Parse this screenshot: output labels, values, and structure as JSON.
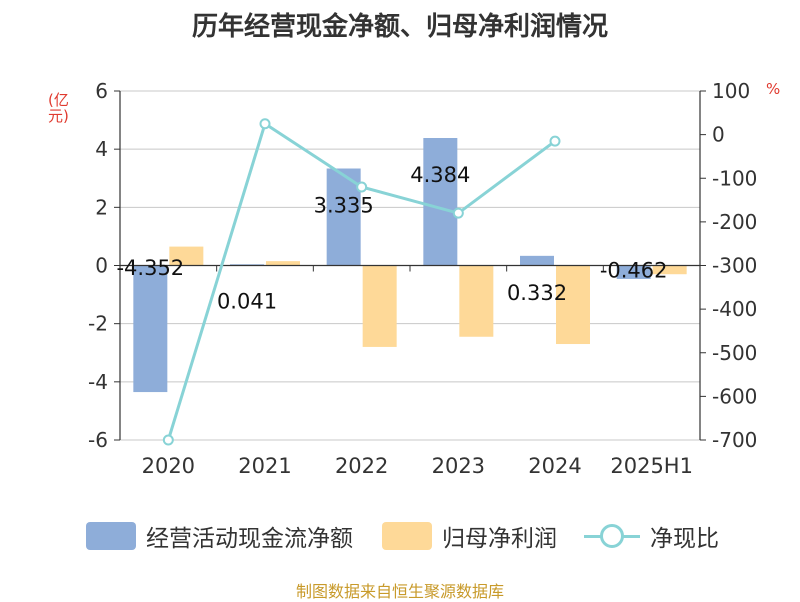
{
  "title": "历年经营现金净额、归母净利润情况",
  "source": "制图数据来自恒生聚源数据库",
  "colors": {
    "cash": "#8eadd9",
    "profit": "#fed998",
    "ratio": "#88d3d6",
    "axis_unit": "#e03a2f",
    "source": "#c89a2a"
  },
  "chart_data": {
    "type": "bar",
    "categories": [
      "2020",
      "2021",
      "2022",
      "2023",
      "2024",
      "2025H1"
    ],
    "series": [
      {
        "name": "经营活动现金流净额",
        "type": "bar",
        "axis": "left",
        "values": [
          -4.352,
          0.041,
          3.335,
          4.384,
          0.332,
          -0.462
        ],
        "labels": [
          "-4.352",
          "0.041",
          "3.335",
          "4.384",
          "0.332",
          "-0.462"
        ]
      },
      {
        "name": "归母净利润",
        "type": "bar",
        "axis": "left",
        "values": [
          0.65,
          0.15,
          -2.8,
          -2.45,
          -2.7,
          -0.3
        ]
      },
      {
        "name": "净现比",
        "type": "line",
        "axis": "right",
        "values": [
          -700,
          25,
          -120,
          -180,
          -15,
          null
        ]
      }
    ],
    "y_left": {
      "label": "(亿元)",
      "min": -6,
      "max": 6,
      "ticks": [
        "6",
        "4",
        "2",
        "0",
        "-2",
        "-4",
        "-6"
      ],
      "tick_values": [
        6,
        4,
        2,
        0,
        -2,
        -4,
        -6
      ]
    },
    "y_right": {
      "label": "%",
      "min": -700,
      "max": 100,
      "ticks": [
        "100",
        "0",
        "-100",
        "-200",
        "-300",
        "-400",
        "-500",
        "-600",
        "-700"
      ],
      "tick_values": [
        100,
        0,
        -100,
        -200,
        -300,
        -400,
        -500,
        -600,
        -700
      ]
    },
    "grid": true,
    "legend_position": "bottom"
  }
}
